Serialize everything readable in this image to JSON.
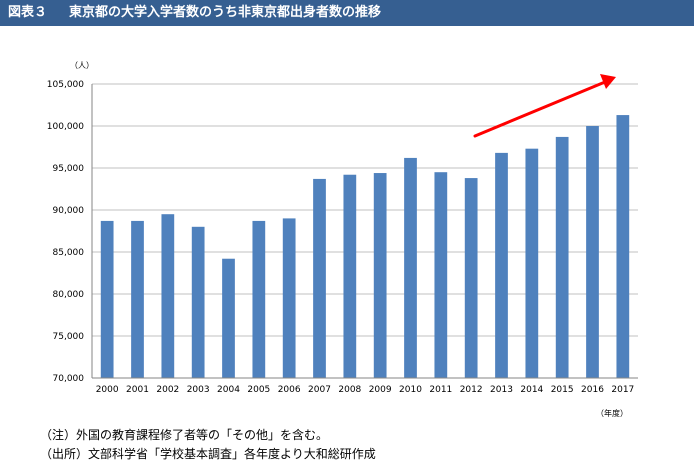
{
  "header": {
    "figure_label": "図表３",
    "title": "東京都の大学入学者数のうち非東京都出身者数の推移"
  },
  "colors": {
    "header_bg": "#365f91",
    "bar": "#4f81bd",
    "arrow": "#ff0000"
  },
  "chart_data": {
    "type": "bar",
    "title": "",
    "xlabel": "（年度）",
    "ylabel": "（人）",
    "ylim": [
      70000,
      105000
    ],
    "ytick_step": 5000,
    "yticks": [
      "70,000",
      "75,000",
      "80,000",
      "85,000",
      "90,000",
      "95,000",
      "100,000",
      "105,000"
    ],
    "grid": true,
    "legend": "none",
    "categories": [
      "2000",
      "2001",
      "2002",
      "2003",
      "2004",
      "2005",
      "2006",
      "2007",
      "2008",
      "2009",
      "2010",
      "2011",
      "2012",
      "2013",
      "2014",
      "2015",
      "2016",
      "2017"
    ],
    "values": [
      88700,
      88700,
      89500,
      88000,
      84200,
      88700,
      89000,
      93700,
      94200,
      94400,
      96200,
      94500,
      93800,
      96800,
      97300,
      98700,
      100000,
      101300
    ],
    "annotation": "red arrow indicating upward trend"
  },
  "notes": [
    "（注）外国の教育課程修了者等の「その他」を含む。",
    "（出所）文部科学省「学校基本調査」各年度より大和総研作成"
  ]
}
